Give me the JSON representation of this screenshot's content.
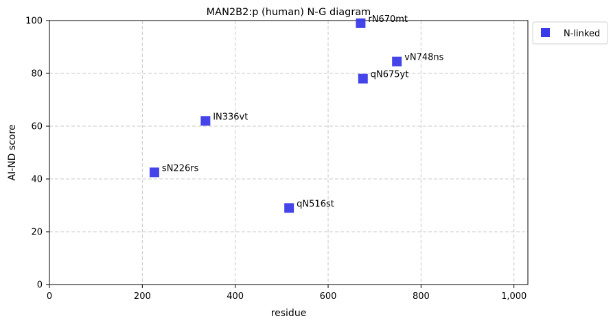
{
  "chart_data": {
    "type": "scatter",
    "title": "MAN2B2:p (human) N-G diagram",
    "xlabel": "residue",
    "ylabel": "AI-ND score",
    "xlim": [
      0,
      1030
    ],
    "ylim": [
      0,
      100
    ],
    "xticks": [
      0,
      200,
      400,
      600,
      800,
      1000
    ],
    "xtick_labels": [
      "0",
      "200",
      "400",
      "600",
      "800",
      "1,000"
    ],
    "yticks": [
      0,
      20,
      40,
      60,
      80,
      100
    ],
    "ytick_labels": [
      "0",
      "20",
      "40",
      "60",
      "80",
      "100"
    ],
    "grid": true,
    "legend_placement": "outside-top-right",
    "series": [
      {
        "name": "N-linked",
        "color": "#3a3ae8",
        "marker": "square",
        "points": [
          {
            "x": 226,
            "y": 42.5,
            "label": "sN226rs"
          },
          {
            "x": 336,
            "y": 62,
            "label": "lN336vt"
          },
          {
            "x": 516,
            "y": 29,
            "label": "qN516st"
          },
          {
            "x": 670,
            "y": 99,
            "label": "rN670mt"
          },
          {
            "x": 675,
            "y": 78,
            "label": "qN675yt"
          },
          {
            "x": 748,
            "y": 84.5,
            "label": "vN748ns"
          }
        ]
      }
    ]
  }
}
